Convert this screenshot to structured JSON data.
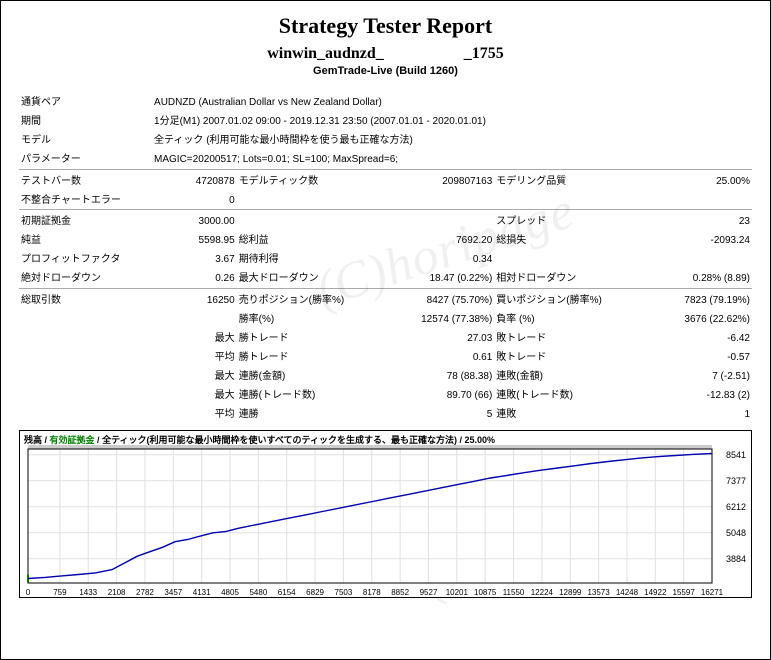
{
  "header": {
    "title": "Strategy Tester Report",
    "subtitle": "winwin_audnzd_　　　　　_1755",
    "platform": "GemTrade-Live (Build 1260)"
  },
  "watermark": "(C)horipage",
  "info": {
    "pair_label": "通貨ペア",
    "pair_value": "AUDNZD (Australian Dollar vs New Zealand Dollar)",
    "period_label": "期間",
    "period_value": "1分足(M1) 2007.01.02 09:00 - 2019.12.31 23:50 (2007.01.01 - 2020.01.01)",
    "model_label": "モデル",
    "model_value": "全ティック (利用可能な最小時間枠を使う最も正確な方法)",
    "param_label": "パラメーター",
    "param_value": "MAGIC=20200517; Lots=0.01; SL=100; MaxSpread=6;"
  },
  "rows": {
    "bars": {
      "l1": "テストバー数",
      "v1": "4720878",
      "l2": "モデルティック数",
      "v2": "209807163",
      "l3": "モデリング品質",
      "v3": "25.00%"
    },
    "mis": {
      "l1": "不整合チャートエラー",
      "v1": "0"
    },
    "dep": {
      "l1": "初期証拠金",
      "v1": "3000.00",
      "l3": "スプレッド",
      "v3": "23"
    },
    "net": {
      "l1": "純益",
      "v1": "5598.95",
      "l2": "総利益",
      "v2": "7692.20",
      "l3": "総損失",
      "v3": "-2093.24"
    },
    "pf": {
      "l1": "プロフィットファクタ",
      "v1": "3.67",
      "l2": "期待利得",
      "v2": "0.34"
    },
    "add": {
      "l1": "絶対ドローダウン",
      "v1": "0.26",
      "l2": "最大ドローダウン",
      "v2": "18.47 (0.22%)",
      "l3": "相対ドローダウン",
      "v3": "0.28% (8.89)"
    },
    "tot": {
      "l1": "総取引数",
      "v1": "16250",
      "l2": "売りポジション(勝率%)",
      "v2": "8427 (75.70%)",
      "l3": "買いポジション(勝率%)",
      "v3": "7823 (79.19%)"
    },
    "win": {
      "l2": "勝率(%)",
      "v2": "12574 (77.38%)",
      "l3": "負率 (%)",
      "v3": "3676 (22.62%)"
    },
    "lt1": {
      "p": "最大",
      "l2": "勝トレード",
      "v2": "27.03",
      "l3": "敗トレード",
      "v3": "-6.42"
    },
    "lt2": {
      "p": "平均",
      "l2": "勝トレード",
      "v2": "0.61",
      "l3": "敗トレード",
      "v3": "-0.57"
    },
    "cw1": {
      "p": "最大",
      "l2": "連勝(金額)",
      "v2": "78 (88.38)",
      "l3": "連敗(金額)",
      "v3": "7 (-2.51)"
    },
    "cw2": {
      "p": "最大",
      "l2": "連勝(トレード数)",
      "v2": "89.70 (66)",
      "l3": "連敗(トレード数)",
      "v3": "-12.83 (2)"
    },
    "cw3": {
      "p": "平均",
      "l2": "連勝",
      "v2": "5",
      "l3": "連敗",
      "v3": "1"
    }
  },
  "chart": {
    "legend": {
      "balance": "残高",
      "equity": "有効証拠金",
      "desc": "全ティック(利用可能な最小時間枠を使いすべてのティックを生成する、最も正確な方法)",
      "quality": "25.00%"
    },
    "x_ticks": [
      "0",
      "759",
      "1433",
      "2108",
      "2782",
      "3457",
      "4131",
      "4805",
      "5480",
      "6154",
      "6829",
      "7503",
      "8178",
      "8852",
      "9527",
      "10201",
      "10875",
      "11550",
      "12224",
      "12899",
      "13573",
      "14248",
      "14922",
      "15597",
      "16271"
    ],
    "y_ticks": [
      "8541",
      "7377",
      "6212",
      "5048",
      "3884"
    ],
    "line_color": "#0000b0",
    "bg_color": "#ffffff",
    "grid_color": "#e0e0e0",
    "axis_color": "#000000",
    "quality_band_color": "#cccccc",
    "start_marker_color": "#008000",
    "ymin": 2800,
    "ymax": 8800,
    "xmin": 0,
    "xmax": 16271,
    "points": [
      [
        0,
        3000
      ],
      [
        400,
        3050
      ],
      [
        800,
        3120
      ],
      [
        1200,
        3180
      ],
      [
        1600,
        3250
      ],
      [
        2000,
        3400
      ],
      [
        2300,
        3700
      ],
      [
        2600,
        4000
      ],
      [
        2900,
        4200
      ],
      [
        3200,
        4400
      ],
      [
        3500,
        4650
      ],
      [
        3800,
        4750
      ],
      [
        4100,
        4900
      ],
      [
        4400,
        5050
      ],
      [
        4700,
        5100
      ],
      [
        5000,
        5250
      ],
      [
        5400,
        5400
      ],
      [
        5800,
        5550
      ],
      [
        6200,
        5700
      ],
      [
        6600,
        5850
      ],
      [
        7000,
        6000
      ],
      [
        7400,
        6150
      ],
      [
        7800,
        6300
      ],
      [
        8200,
        6450
      ],
      [
        8600,
        6600
      ],
      [
        9000,
        6750
      ],
      [
        9400,
        6900
      ],
      [
        9800,
        7050
      ],
      [
        10200,
        7200
      ],
      [
        10600,
        7350
      ],
      [
        11000,
        7500
      ],
      [
        11400,
        7620
      ],
      [
        11800,
        7740
      ],
      [
        12200,
        7850
      ],
      [
        12600,
        7950
      ],
      [
        13000,
        8050
      ],
      [
        13400,
        8150
      ],
      [
        13800,
        8240
      ],
      [
        14200,
        8320
      ],
      [
        14600,
        8400
      ],
      [
        15000,
        8460
      ],
      [
        15400,
        8510
      ],
      [
        15800,
        8560
      ],
      [
        16271,
        8598
      ]
    ]
  }
}
